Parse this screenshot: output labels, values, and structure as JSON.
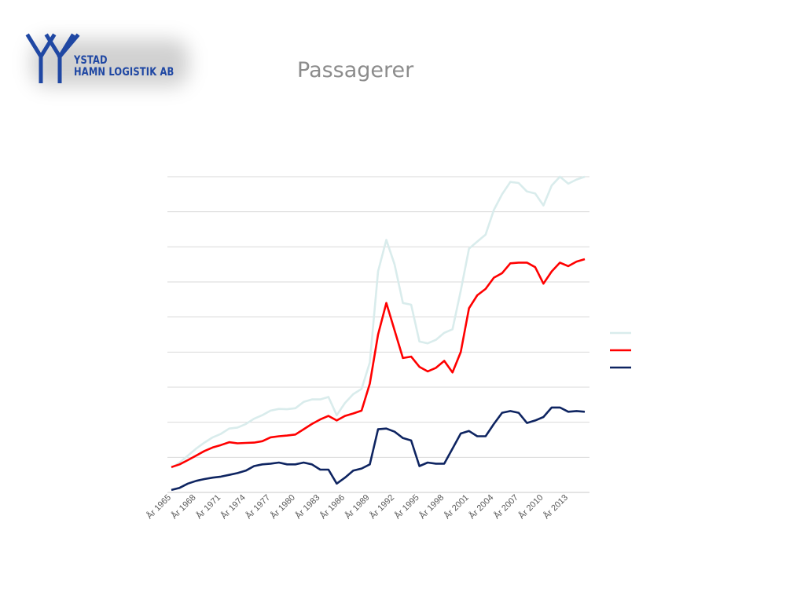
{
  "logo": {
    "line1": "YSTAD",
    "line2": "HAMN LOGISTIK AB"
  },
  "title": "Passagerer",
  "chart_data": {
    "type": "line",
    "title": "Passagerer",
    "xlabel": "",
    "ylabel": "",
    "x": [
      "År 1965",
      "År 1966",
      "År 1967",
      "År 1968",
      "År 1969",
      "År 1970",
      "År 1971",
      "År 1972",
      "År 1973",
      "År 1974",
      "År 1975",
      "År 1976",
      "År 1977",
      "År 1978",
      "År 1979",
      "År 1980",
      "År 1981",
      "År 1982",
      "År 1983",
      "År 1984",
      "År 1985",
      "År 1986",
      "År 1987",
      "År 1988",
      "År 1989",
      "År 1990",
      "År 1991",
      "År 1992",
      "År 1993",
      "År 1994",
      "År 1995",
      "År 1996",
      "År 1997",
      "År 1998",
      "År 1999",
      "År 2000",
      "År 2001",
      "År 2002",
      "År 2003",
      "År 2004",
      "År 2005",
      "År 2006",
      "År 2007",
      "År 2008",
      "År 2009",
      "År 2010",
      "År 2011",
      "År 2012",
      "År 2013",
      "År 2014",
      "År 2015"
    ],
    "tick_labels": [
      "År 1965",
      "År 1968",
      "År 1971",
      "År 1974",
      "År 1977",
      "År 1980",
      "År 1983",
      "År 1986",
      "År 1989",
      "År 1992",
      "År 1995",
      "År 1998",
      "År 2001",
      "År 2004",
      "År 2007",
      "År 2010",
      "År 2013"
    ],
    "ylim": [
      0,
      9
    ],
    "gridlines": 9,
    "grid": true,
    "legend_position": "right",
    "series": [
      {
        "color": "#d9ecec",
        "values": [
          0.7,
          0.85,
          1.05,
          1.25,
          1.42,
          1.57,
          1.67,
          1.82,
          1.85,
          1.95,
          2.1,
          2.2,
          2.33,
          2.38,
          2.37,
          2.4,
          2.58,
          2.65,
          2.65,
          2.72,
          2.2,
          2.55,
          2.8,
          2.95,
          3.7,
          6.3,
          7.2,
          6.5,
          5.4,
          5.35,
          4.3,
          4.25,
          4.35,
          4.55,
          4.65,
          5.75,
          6.95,
          7.15,
          7.35,
          8.05,
          8.5,
          8.85,
          8.82,
          8.58,
          8.52,
          8.18,
          8.75,
          9.0,
          8.8,
          8.92,
          9.0
        ]
      },
      {
        "color": "#ff0000",
        "values": [
          0.72,
          0.8,
          0.92,
          1.05,
          1.18,
          1.28,
          1.35,
          1.43,
          1.4,
          1.41,
          1.42,
          1.46,
          1.57,
          1.6,
          1.62,
          1.65,
          1.8,
          1.95,
          2.08,
          2.18,
          2.05,
          2.18,
          2.25,
          2.33,
          3.1,
          4.5,
          5.4,
          4.62,
          3.83,
          3.87,
          3.58,
          3.45,
          3.55,
          3.75,
          3.42,
          4.0,
          5.25,
          5.62,
          5.8,
          6.12,
          6.25,
          6.53,
          6.55,
          6.55,
          6.42,
          5.95,
          6.3,
          6.55,
          6.45,
          6.58,
          6.65
        ]
      },
      {
        "color": "#0e2461",
        "values": [
          0.07,
          0.13,
          0.25,
          0.33,
          0.38,
          0.42,
          0.45,
          0.5,
          0.55,
          0.62,
          0.75,
          0.8,
          0.82,
          0.85,
          0.8,
          0.8,
          0.85,
          0.8,
          0.65,
          0.65,
          0.25,
          0.42,
          0.62,
          0.68,
          0.8,
          1.8,
          1.82,
          1.73,
          1.55,
          1.48,
          0.75,
          0.85,
          0.82,
          0.82,
          1.25,
          1.68,
          1.75,
          1.6,
          1.6,
          1.95,
          2.27,
          2.32,
          2.27,
          1.98,
          2.05,
          2.15,
          2.42,
          2.42,
          2.3,
          2.32,
          2.3
        ]
      }
    ]
  }
}
